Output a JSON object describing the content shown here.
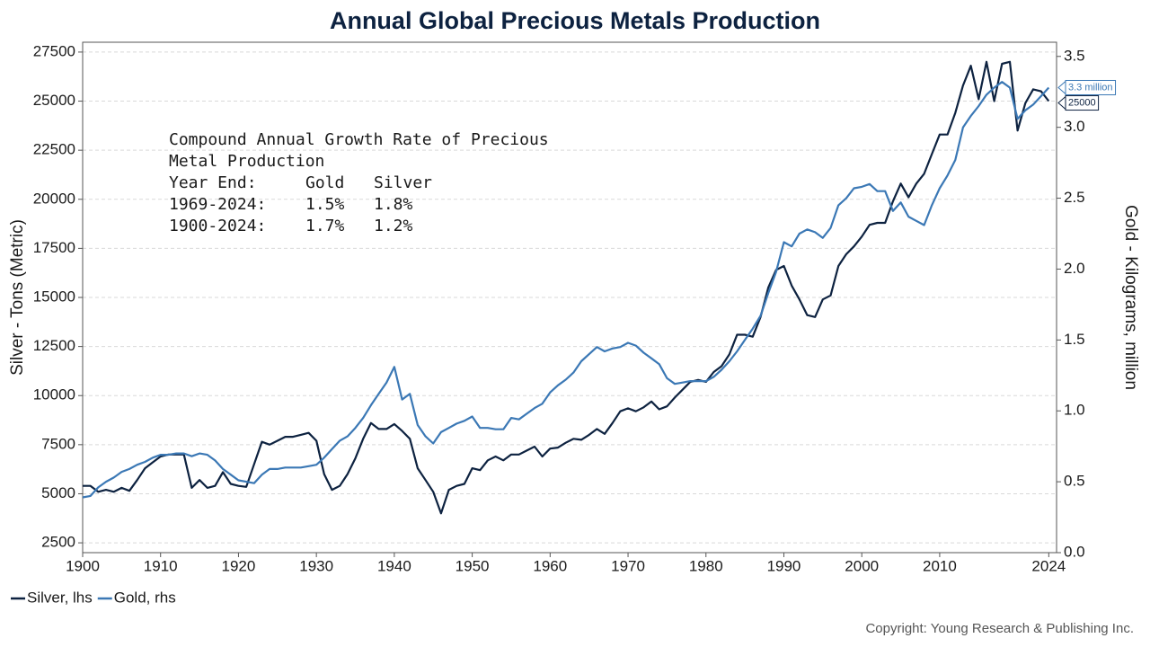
{
  "chart_data": {
    "type": "line",
    "title": "Annual Global Precious Metals Production",
    "ylabel": "Silver - Tons (Metric)",
    "y2label": "Gold - Kilograms, million",
    "x": [
      1900,
      1901,
      1902,
      1903,
      1904,
      1905,
      1906,
      1907,
      1908,
      1909,
      1910,
      1911,
      1912,
      1913,
      1914,
      1915,
      1916,
      1917,
      1918,
      1919,
      1920,
      1921,
      1922,
      1923,
      1924,
      1925,
      1926,
      1927,
      1928,
      1929,
      1930,
      1931,
      1932,
      1933,
      1934,
      1935,
      1936,
      1937,
      1938,
      1939,
      1940,
      1941,
      1942,
      1943,
      1944,
      1945,
      1946,
      1947,
      1948,
      1949,
      1950,
      1951,
      1952,
      1953,
      1954,
      1955,
      1956,
      1957,
      1958,
      1959,
      1960,
      1961,
      1962,
      1963,
      1964,
      1965,
      1966,
      1967,
      1968,
      1969,
      1970,
      1971,
      1972,
      1973,
      1974,
      1975,
      1976,
      1977,
      1978,
      1979,
      1980,
      1981,
      1982,
      1983,
      1984,
      1985,
      1986,
      1987,
      1988,
      1989,
      1990,
      1991,
      1992,
      1993,
      1994,
      1995,
      1996,
      1997,
      1998,
      1999,
      2000,
      2001,
      2002,
      2003,
      2004,
      2005,
      2006,
      2007,
      2008,
      2009,
      2010,
      2011,
      2012,
      2013,
      2014,
      2015,
      2016,
      2017,
      2018,
      2019,
      2020,
      2021,
      2022,
      2023,
      2024
    ],
    "series": [
      {
        "name": "Silver, lhs",
        "color": "#0d2240",
        "axis": "y",
        "end_label": "25000",
        "values": [
          5400,
          5400,
          5100,
          5200,
          5100,
          5300,
          5150,
          5700,
          6300,
          6600,
          6900,
          7000,
          7000,
          7000,
          5300,
          5700,
          5300,
          5400,
          6100,
          5500,
          5400,
          5350,
          6500,
          7650,
          7500,
          7700,
          7900,
          7900,
          8000,
          8100,
          7700,
          6000,
          5200,
          5400,
          6000,
          6800,
          7800,
          8600,
          8300,
          8300,
          8550,
          8200,
          7800,
          6300,
          5700,
          5100,
          4000,
          5200,
          5400,
          5500,
          6300,
          6200,
          6700,
          6900,
          6700,
          7000,
          7000,
          7200,
          7400,
          6900,
          7300,
          7350,
          7600,
          7800,
          7750,
          8000,
          8300,
          8050,
          8600,
          9200,
          9350,
          9200,
          9400,
          9700,
          9300,
          9450,
          9900,
          10300,
          10700,
          10800,
          10700,
          11200,
          11500,
          12100,
          13100,
          13100,
          13000,
          14000,
          15500,
          16400,
          16600,
          15600,
          14900,
          14100,
          14000,
          14900,
          15100,
          16600,
          17200,
          17600,
          18100,
          18700,
          18800,
          18800,
          19900,
          20800,
          20100,
          20800,
          21300,
          22300,
          23300,
          23300,
          24400,
          25800,
          26800,
          25100,
          27000,
          25000,
          26900,
          27000,
          23500,
          24900,
          25600,
          25500,
          25000
        ]
      },
      {
        "name": "Gold, rhs",
        "color": "#3b78b5",
        "axis": "y2",
        "end_label": "3.3 million",
        "values": [
          0.39,
          0.4,
          0.46,
          0.5,
          0.53,
          0.57,
          0.59,
          0.62,
          0.64,
          0.67,
          0.69,
          0.69,
          0.7,
          0.7,
          0.68,
          0.7,
          0.69,
          0.65,
          0.59,
          0.55,
          0.51,
          0.5,
          0.49,
          0.55,
          0.59,
          0.59,
          0.6,
          0.6,
          0.6,
          0.61,
          0.62,
          0.67,
          0.73,
          0.79,
          0.82,
          0.88,
          0.95,
          1.04,
          1.12,
          1.2,
          1.31,
          1.08,
          1.12,
          0.9,
          0.82,
          0.77,
          0.85,
          0.88,
          0.91,
          0.93,
          0.96,
          0.88,
          0.88,
          0.87,
          0.87,
          0.95,
          0.94,
          0.98,
          1.02,
          1.05,
          1.13,
          1.18,
          1.22,
          1.27,
          1.35,
          1.4,
          1.45,
          1.42,
          1.44,
          1.45,
          1.48,
          1.46,
          1.41,
          1.37,
          1.33,
          1.23,
          1.19,
          1.2,
          1.21,
          1.21,
          1.21,
          1.24,
          1.29,
          1.35,
          1.42,
          1.5,
          1.58,
          1.67,
          1.83,
          1.98,
          2.19,
          2.16,
          2.25,
          2.28,
          2.26,
          2.22,
          2.29,
          2.45,
          2.5,
          2.57,
          2.58,
          2.6,
          2.55,
          2.55,
          2.41,
          2.47,
          2.37,
          2.34,
          2.31,
          2.45,
          2.57,
          2.66,
          2.77,
          3.0,
          3.08,
          3.15,
          3.23,
          3.28,
          3.32,
          3.28,
          3.06,
          3.12,
          3.16,
          3.22,
          3.28
        ]
      }
    ],
    "xlim": [
      1900,
      2025
    ],
    "xticks": [
      1900,
      1910,
      1920,
      1930,
      1940,
      1950,
      1960,
      1970,
      1980,
      1990,
      2000,
      2010,
      2024
    ],
    "ylim": [
      2000,
      28000
    ],
    "yticks": [
      2500,
      5000,
      7500,
      10000,
      12500,
      15000,
      17500,
      20000,
      22500,
      25000,
      27500
    ],
    "y2lim": [
      0,
      3.6
    ],
    "y2ticks": [
      {
        "value": 0,
        "label": "0.0"
      },
      0.5,
      {
        "value": 1,
        "label": "1.0"
      },
      1.5,
      {
        "value": 2,
        "label": "2.0"
      },
      2.5,
      {
        "value": 3,
        "label": "3.0"
      },
      3.5
    ],
    "grid": true,
    "legend": "bottom-left",
    "annotation": {
      "title": "Compound Annual Growth Rate of Precious Metal Production",
      "header": [
        "Year End:",
        "Gold",
        "Silver"
      ],
      "rows": [
        [
          "1969-2024:",
          "1.5%",
          "1.8%"
        ],
        [
          "1900-2024:",
          "1.7%",
          "1.2%"
        ]
      ]
    },
    "source": "Copyright: Young Research & Publishing Inc."
  }
}
